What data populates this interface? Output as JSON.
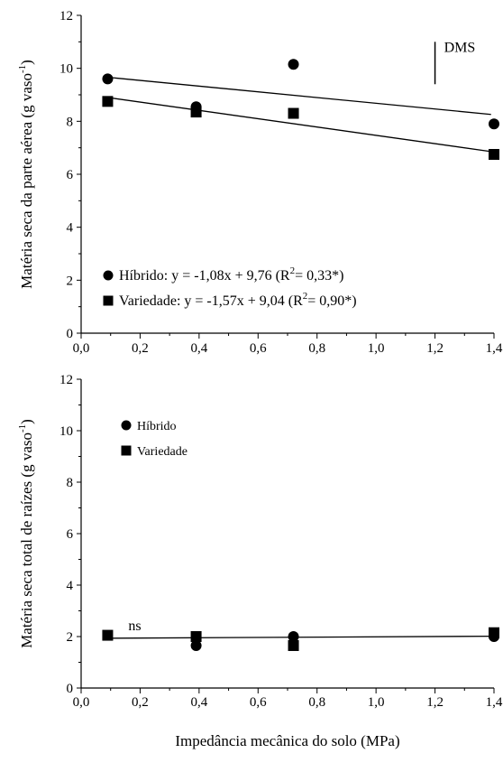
{
  "chart_data": [
    {
      "type": "scatter",
      "title": "",
      "xlabel": "",
      "ylabel": "Matéria seca da parte aérea (g vaso-1)",
      "ylabel_main": "Matéria seca da parte aérea (g vaso",
      "ylabel_sup": "-1",
      "ylabel_end": ")",
      "xlim": [
        0,
        1.4
      ],
      "ylim": [
        0,
        12
      ],
      "x_ticks": [
        "0,0",
        "0,2",
        "0,4",
        "0,6",
        "0,8",
        "1,0",
        "1,2",
        "1,4"
      ],
      "y_ticks": [
        "0",
        "2",
        "4",
        "6",
        "8",
        "10",
        "12"
      ],
      "series": [
        {
          "name": "Híbrido",
          "marker": "circle",
          "x": [
            0.09,
            0.39,
            0.72,
            1.4
          ],
          "y": [
            9.6,
            8.55,
            10.15,
            7.9
          ],
          "fit": {
            "slope": -1.08,
            "intercept": 9.76,
            "x_range": [
              0.09,
              1.39
            ]
          },
          "legend_label": "Híbrido: y = -1,08x + 9,76 (R",
          "legend_sup": "2",
          "legend_end": "= 0,33*)"
        },
        {
          "name": "Variedade",
          "marker": "square",
          "x": [
            0.09,
            0.39,
            0.72,
            1.4
          ],
          "y": [
            8.75,
            8.35,
            8.3,
            6.75
          ],
          "fit": {
            "slope": -1.57,
            "intercept": 9.04,
            "x_range": [
              0.09,
              1.39
            ]
          },
          "legend_label": "Variedade: y = -1,57x + 9,04 (R",
          "legend_sup": "2",
          "legend_end": "= 0,90*)"
        }
      ],
      "annotations": [
        {
          "text": "DMS",
          "x": 1.2,
          "y_bar": [
            9.4,
            11.0
          ]
        }
      ],
      "legend_placement": "bottom-left",
      "grid": false
    },
    {
      "type": "scatter",
      "title": "",
      "xlabel": "Impedância mecânica do solo (MPa)",
      "ylabel": "Matéria seca total de raízes (g vaso-1)",
      "ylabel_main": "Matéria seca total de raízes (g vaso",
      "ylabel_sup": "-1",
      "ylabel_end": ")",
      "xlim": [
        0,
        1.4
      ],
      "ylim": [
        0,
        12
      ],
      "x_ticks": [
        "0,0",
        "0,2",
        "0,4",
        "0,6",
        "0,8",
        "1,0",
        "1,2",
        "1,4"
      ],
      "y_ticks": [
        "0",
        "2",
        "4",
        "6",
        "8",
        "10",
        "12"
      ],
      "series": [
        {
          "name": "Híbrido",
          "marker": "circle",
          "x": [
            0.39,
            0.72,
            1.4
          ],
          "y": [
            1.65,
            2.0,
            2.0
          ],
          "legend_label": "Híbrido"
        },
        {
          "name": "Variedade",
          "marker": "square",
          "x": [
            0.09,
            0.39,
            0.72,
            1.4
          ],
          "y": [
            2.05,
            2.0,
            1.65,
            2.15
          ],
          "legend_label": "Variedade"
        }
      ],
      "fit": {
        "slope": 0.06,
        "intercept": 1.93,
        "x_range": [
          0.09,
          1.4
        ]
      },
      "annotations": [
        {
          "text": "ns",
          "x": 0.16,
          "y": 2.25
        }
      ],
      "legend_placement": "top-left",
      "grid": false
    }
  ]
}
